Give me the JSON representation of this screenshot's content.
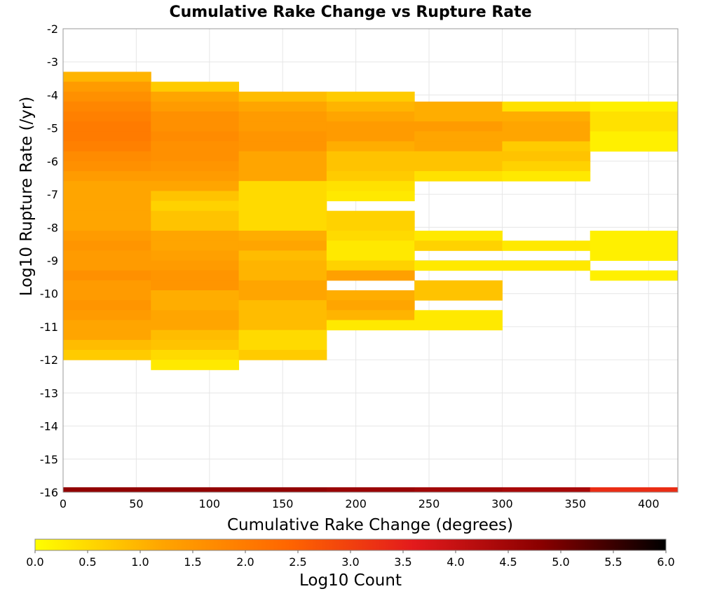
{
  "chart_data": {
    "type": "heatmap",
    "title": "Cumulative Rake Change vs Rupture Rate",
    "xlabel": "Cumulative Rake Change (degrees)",
    "ylabel": "Log10 Rupture Rate (/yr)",
    "xlim": [
      0,
      420
    ],
    "ylim": [
      -16,
      -2
    ],
    "x_ticks": [
      "0",
      "50",
      "100",
      "150",
      "200",
      "250",
      "300",
      "350",
      "400"
    ],
    "x_tick_values": [
      0,
      50,
      100,
      150,
      200,
      250,
      300,
      350,
      400
    ],
    "y_ticks": [
      "-2",
      "-3",
      "-4",
      "-5",
      "-6",
      "-7",
      "-8",
      "-9",
      "-10",
      "-11",
      "-12",
      "-13",
      "-14",
      "-15",
      "-16"
    ],
    "y_tick_values": [
      -2,
      -3,
      -4,
      -5,
      -6,
      -7,
      -8,
      -9,
      -10,
      -11,
      -12,
      -13,
      -14,
      -15,
      -16
    ],
    "x_bin_edges": [
      0,
      60,
      120,
      180,
      240,
      300,
      360,
      420
    ],
    "y_bin_height": 0.3,
    "grid": true,
    "colorbar": {
      "label": "Log10 Count",
      "range": [
        0,
        6
      ],
      "ticks": [
        "0.0",
        "0.5",
        "1.0",
        "1.5",
        "2.0",
        "2.5",
        "3.0",
        "3.5",
        "4.0",
        "4.5",
        "5.0",
        "5.5",
        "6.0"
      ],
      "tick_values": [
        0,
        0.5,
        1,
        1.5,
        2,
        2.5,
        3,
        3.5,
        4,
        4.5,
        5,
        5.5,
        6
      ],
      "placement": "bottom",
      "colors": [
        "#ffff00",
        "#ffa500",
        "#ff6600",
        "#e31a1c",
        "#8b0000",
        "#000000"
      ]
    },
    "columns": [
      {
        "x_bin": [
          0,
          60
        ],
        "cells": [
          {
            "y": -3.45,
            "v": 1.0
          },
          {
            "y": -3.75,
            "v": 1.4
          },
          {
            "y": -4.05,
            "v": 1.6
          },
          {
            "y": -4.35,
            "v": 1.8
          },
          {
            "y": -4.65,
            "v": 1.9
          },
          {
            "y": -4.95,
            "v": 2.0
          },
          {
            "y": -5.25,
            "v": 2.0
          },
          {
            "y": -5.55,
            "v": 1.9
          },
          {
            "y": -5.85,
            "v": 1.7
          },
          {
            "y": -6.15,
            "v": 1.6
          },
          {
            "y": -6.45,
            "v": 1.4
          },
          {
            "y": -6.75,
            "v": 1.2
          },
          {
            "y": -7.05,
            "v": 1.2
          },
          {
            "y": -7.35,
            "v": 1.2
          },
          {
            "y": -7.65,
            "v": 1.2
          },
          {
            "y": -7.95,
            "v": 1.2
          },
          {
            "y": -8.25,
            "v": 1.4
          },
          {
            "y": -8.55,
            "v": 1.5
          },
          {
            "y": -8.85,
            "v": 1.4
          },
          {
            "y": -9.15,
            "v": 1.4
          },
          {
            "y": -9.45,
            "v": 1.6
          },
          {
            "y": -9.75,
            "v": 1.4
          },
          {
            "y": -10.05,
            "v": 1.4
          },
          {
            "y": -10.35,
            "v": 1.5
          },
          {
            "y": -10.65,
            "v": 1.4
          },
          {
            "y": -10.95,
            "v": 1.2
          },
          {
            "y": -11.25,
            "v": 1.2
          },
          {
            "y": -11.55,
            "v": 0.9
          },
          {
            "y": -11.85,
            "v": 0.7
          }
        ]
      },
      {
        "x_bin": [
          60,
          120
        ],
        "cells": [
          {
            "y": -3.75,
            "v": 0.7
          },
          {
            "y": -4.05,
            "v": 1.2
          },
          {
            "y": -4.35,
            "v": 1.4
          },
          {
            "y": -4.65,
            "v": 1.6
          },
          {
            "y": -4.95,
            "v": 1.6
          },
          {
            "y": -5.25,
            "v": 1.7
          },
          {
            "y": -5.55,
            "v": 1.6
          },
          {
            "y": -5.85,
            "v": 1.6
          },
          {
            "y": -6.15,
            "v": 1.5
          },
          {
            "y": -6.45,
            "v": 1.4
          },
          {
            "y": -6.75,
            "v": 1.2
          },
          {
            "y": -7.05,
            "v": 0.8
          },
          {
            "y": -7.35,
            "v": 0.6
          },
          {
            "y": -7.65,
            "v": 0.8
          },
          {
            "y": -7.95,
            "v": 0.8
          },
          {
            "y": -8.25,
            "v": 1.2
          },
          {
            "y": -8.55,
            "v": 1.2
          },
          {
            "y": -8.85,
            "v": 1.3
          },
          {
            "y": -9.15,
            "v": 1.4
          },
          {
            "y": -9.45,
            "v": 1.5
          },
          {
            "y": -9.75,
            "v": 1.5
          },
          {
            "y": -10.05,
            "v": 1.1
          },
          {
            "y": -10.35,
            "v": 1.1
          },
          {
            "y": -10.65,
            "v": 1.2
          },
          {
            "y": -10.95,
            "v": 1.2
          },
          {
            "y": -11.25,
            "v": 0.9
          },
          {
            "y": -11.55,
            "v": 0.8
          },
          {
            "y": -11.85,
            "v": 0.5
          },
          {
            "y": -12.15,
            "v": 0.3
          }
        ]
      },
      {
        "x_bin": [
          120,
          180
        ],
        "cells": [
          {
            "y": -4.05,
            "v": 0.9
          },
          {
            "y": -4.35,
            "v": 1.2
          },
          {
            "y": -4.65,
            "v": 1.4
          },
          {
            "y": -4.95,
            "v": 1.4
          },
          {
            "y": -5.25,
            "v": 1.5
          },
          {
            "y": -5.55,
            "v": 1.5
          },
          {
            "y": -5.85,
            "v": 1.2
          },
          {
            "y": -6.15,
            "v": 1.2
          },
          {
            "y": -6.45,
            "v": 1.2
          },
          {
            "y": -6.75,
            "v": 0.5
          },
          {
            "y": -7.05,
            "v": 0.5
          },
          {
            "y": -7.35,
            "v": 0.5
          },
          {
            "y": -7.65,
            "v": 0.5
          },
          {
            "y": -7.95,
            "v": 0.5
          },
          {
            "y": -8.25,
            "v": 1.1
          },
          {
            "y": -8.55,
            "v": 1.2
          },
          {
            "y": -8.85,
            "v": 0.9
          },
          {
            "y": -9.15,
            "v": 1.0
          },
          {
            "y": -9.45,
            "v": 1.0
          },
          {
            "y": -9.75,
            "v": 1.2
          },
          {
            "y": -10.05,
            "v": 1.2
          },
          {
            "y": -10.35,
            "v": 0.9
          },
          {
            "y": -10.65,
            "v": 0.9
          },
          {
            "y": -10.95,
            "v": 0.9
          },
          {
            "y": -11.25,
            "v": 0.5
          },
          {
            "y": -11.55,
            "v": 0.5
          },
          {
            "y": -11.85,
            "v": 0.7
          }
        ]
      },
      {
        "x_bin": [
          180,
          240
        ],
        "cells": [
          {
            "y": -4.05,
            "v": 0.7
          },
          {
            "y": -4.35,
            "v": 1.0
          },
          {
            "y": -4.65,
            "v": 1.2
          },
          {
            "y": -4.95,
            "v": 1.4
          },
          {
            "y": -5.25,
            "v": 1.4
          },
          {
            "y": -5.55,
            "v": 1.1
          },
          {
            "y": -5.85,
            "v": 0.8
          },
          {
            "y": -6.15,
            "v": 0.8
          },
          {
            "y": -6.45,
            "v": 0.7
          },
          {
            "y": -6.75,
            "v": 0.4
          },
          {
            "y": -7.05,
            "v": 0.3
          },
          {
            "y": -7.65,
            "v": 0.6
          },
          {
            "y": -7.95,
            "v": 0.6
          },
          {
            "y": -8.25,
            "v": 0.5
          },
          {
            "y": -8.55,
            "v": 0.3
          },
          {
            "y": -8.85,
            "v": 0.3
          },
          {
            "y": -9.15,
            "v": 0.6
          },
          {
            "y": -9.45,
            "v": 1.3
          },
          {
            "y": -10.05,
            "v": 1.1
          },
          {
            "y": -10.35,
            "v": 1.2
          },
          {
            "y": -10.65,
            "v": 1.0
          },
          {
            "y": -10.95,
            "v": 0.3
          }
        ]
      },
      {
        "x_bin": [
          240,
          300
        ],
        "cells": [
          {
            "y": -4.35,
            "v": 1.1
          },
          {
            "y": -4.65,
            "v": 1.1
          },
          {
            "y": -4.95,
            "v": 1.4
          },
          {
            "y": -5.25,
            "v": 1.2
          },
          {
            "y": -5.55,
            "v": 1.2
          },
          {
            "y": -5.85,
            "v": 0.8
          },
          {
            "y": -6.15,
            "v": 0.8
          },
          {
            "y": -6.45,
            "v": 0.4
          },
          {
            "y": -8.25,
            "v": 0.3
          },
          {
            "y": -8.55,
            "v": 0.6
          },
          {
            "y": -9.15,
            "v": 0.3
          },
          {
            "y": -9.75,
            "v": 0.8
          },
          {
            "y": -10.05,
            "v": 0.8
          },
          {
            "y": -10.65,
            "v": 0.3
          },
          {
            "y": -10.95,
            "v": 0.3
          }
        ]
      },
      {
        "x_bin": [
          300,
          360
        ],
        "cells": [
          {
            "y": -4.35,
            "v": 0.4
          },
          {
            "y": -4.65,
            "v": 1.1
          },
          {
            "y": -4.95,
            "v": 1.2
          },
          {
            "y": -5.25,
            "v": 1.2
          },
          {
            "y": -5.55,
            "v": 0.7
          },
          {
            "y": -5.85,
            "v": 0.8
          },
          {
            "y": -6.15,
            "v": 0.6
          },
          {
            "y": -6.45,
            "v": 0.3
          },
          {
            "y": -8.55,
            "v": 0.3
          },
          {
            "y": -9.15,
            "v": 0.3
          }
        ]
      },
      {
        "x_bin": [
          360,
          420
        ],
        "cells": [
          {
            "y": -4.35,
            "v": 0.2
          },
          {
            "y": -4.65,
            "v": 0.4
          },
          {
            "y": -4.95,
            "v": 0.4
          },
          {
            "y": -5.25,
            "v": 0.2
          },
          {
            "y": -5.55,
            "v": 0.2
          },
          {
            "y": -8.25,
            "v": 0.2
          },
          {
            "y": -8.55,
            "v": 0.2
          },
          {
            "y": -8.85,
            "v": 0.2
          },
          {
            "y": -9.45,
            "v": 0.2
          }
        ]
      }
    ],
    "bottom_row": {
      "y": -15.95,
      "values": [
        4.7,
        4.7,
        4.7,
        4.6,
        4.5,
        4.4,
        3.3
      ]
    }
  }
}
